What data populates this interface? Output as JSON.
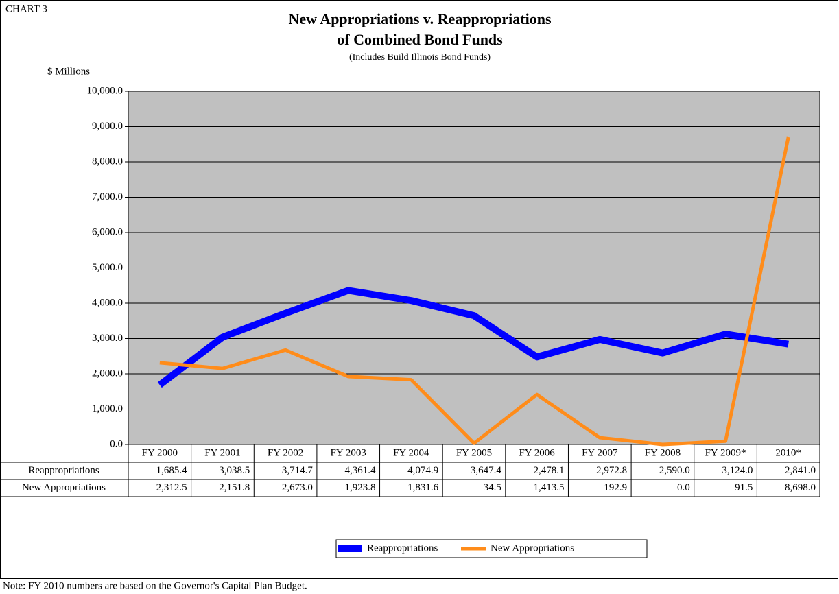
{
  "chart_data": {
    "type": "line",
    "label": "CHART 3",
    "title": [
      "New Appropriations v. Reappropriations",
      "of Combined Bond Funds"
    ],
    "subtitle": "(Includes Build Illinois Bond Funds)",
    "y_label": "$ Millions",
    "note": "Note: FY 2010 numbers are based on the Governor's Capital Plan Budget.",
    "categories": [
      "FY 2000",
      "FY 2001",
      "FY 2002",
      "FY 2003",
      "FY 2004",
      "FY 2005",
      "FY 2006",
      "FY 2007",
      "FY 2008",
      "FY 2009*",
      "2010*"
    ],
    "series": [
      {
        "name": "Reappropriations",
        "color": "#0000ff",
        "values": [
          1685.4,
          3038.5,
          3714.7,
          4361.4,
          4074.9,
          3647.4,
          2478.1,
          2972.8,
          2590.0,
          3124.0,
          2841.0
        ],
        "value_labels": [
          "1,685.4",
          "3,038.5",
          "3,714.7",
          "4,361.4",
          "4,074.9",
          "3,647.4",
          "2,478.1",
          "2,972.8",
          "2,590.0",
          "3,124.0",
          "2,841.0"
        ]
      },
      {
        "name": "New Appropriations",
        "color": "#ff8c1a",
        "values": [
          2312.5,
          2151.8,
          2673.0,
          1923.8,
          1831.6,
          34.5,
          1413.5,
          192.9,
          0.0,
          91.5,
          8698.0
        ],
        "value_labels": [
          "2,312.5",
          "2,151.8",
          "2,673.0",
          "1,923.8",
          "1,831.6",
          "34.5",
          "1,413.5",
          "192.9",
          "0.0",
          "91.5",
          "8,698.0"
        ]
      }
    ],
    "ylim": [
      0,
      10000
    ],
    "yticks": [
      {
        "value": 0,
        "label": "0.0"
      },
      {
        "value": 1000,
        "label": "1,000.0"
      },
      {
        "value": 2000,
        "label": "2,000.0"
      },
      {
        "value": 3000,
        "label": "3,000.0"
      },
      {
        "value": 4000,
        "label": "4,000.0"
      },
      {
        "value": 5000,
        "label": "5,000.0"
      },
      {
        "value": 6000,
        "label": "6,000.0"
      },
      {
        "value": 7000,
        "label": "7,000.0"
      },
      {
        "value": 8000,
        "label": "8,000.0"
      },
      {
        "value": 9000,
        "label": "9,000.0"
      },
      {
        "value": 10000,
        "label": "10,000.0"
      }
    ],
    "grid": true,
    "legend": "bottom"
  }
}
